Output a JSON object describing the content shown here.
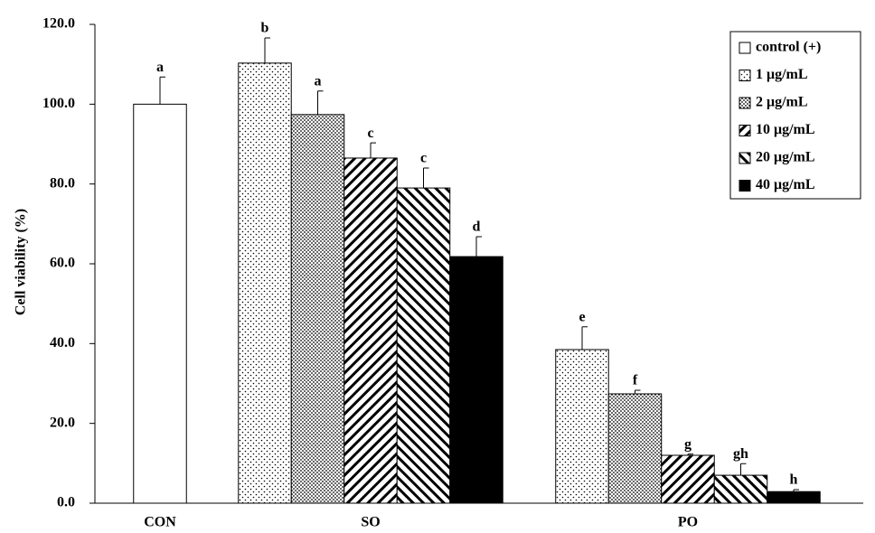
{
  "chart_data": {
    "type": "bar",
    "ylabel": "Cell viability (%)",
    "categories": [
      "CON",
      "SO",
      "PO"
    ],
    "ylim": [
      0,
      120
    ],
    "yticks": [
      {
        "value": 0,
        "label": "0.0"
      },
      {
        "value": 20,
        "label": "20.0"
      },
      {
        "value": 40,
        "label": "40.0"
      },
      {
        "value": 60,
        "label": "60.0"
      },
      {
        "value": 80,
        "label": "80.0"
      },
      {
        "value": 100,
        "label": "100.0"
      },
      {
        "value": 120,
        "label": "120.0"
      }
    ],
    "legend": "upper right",
    "series": [
      {
        "name": "control (+)",
        "color": "#ffffff",
        "values": [
          100,
          null,
          null
        ],
        "errors": [
          6.8,
          null,
          null
        ],
        "annotations": [
          "a",
          null,
          null
        ]
      },
      {
        "name": "1 μg/mL",
        "color": "#ffffff",
        "values": [
          null,
          110.3,
          38.5
        ],
        "errors": [
          null,
          6.3,
          5.7
        ],
        "annotations": [
          null,
          "b",
          "e"
        ]
      },
      {
        "name": "2 μg/mL",
        "color": "#ffffff",
        "values": [
          null,
          97.4,
          27.4
        ],
        "errors": [
          null,
          5.9,
          0.9
        ],
        "annotations": [
          null,
          "a",
          "f"
        ]
      },
      {
        "name": "10 μg/mL",
        "color": "#000000",
        "values": [
          null,
          86.5,
          12.0
        ],
        "errors": [
          null,
          3.8,
          0.3
        ],
        "annotations": [
          null,
          "c",
          "g"
        ]
      },
      {
        "name": "20 μg/mL",
        "color": "#000000",
        "values": [
          null,
          79.0,
          7.0
        ],
        "errors": [
          null,
          5.0,
          2.9
        ],
        "annotations": [
          null,
          "c",
          "gh"
        ]
      },
      {
        "name": "40 μg/mL",
        "color": "#000000",
        "values": [
          null,
          61.8,
          2.9
        ],
        "errors": [
          null,
          5.0,
          0.5
        ],
        "annotations": [
          null,
          "d",
          "h"
        ]
      }
    ]
  }
}
